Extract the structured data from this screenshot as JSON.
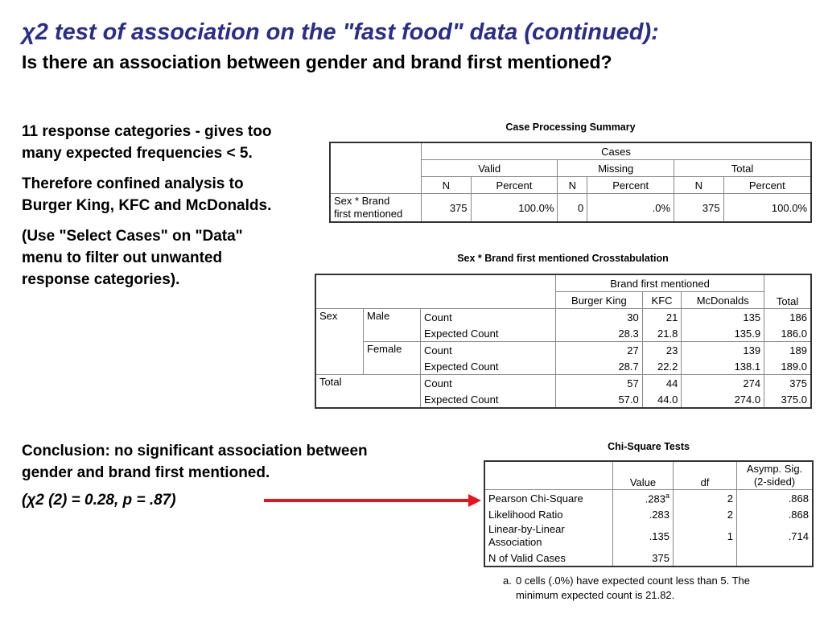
{
  "slide": {
    "title": "χ2 test of association on the \"fast food\" data (continued):",
    "subtitle": "Is there an association between gender and brand first mentioned?",
    "bullets": [
      "11 response categories - gives too many expected frequencies < 5.",
      "Therefore confined analysis to Burger King, KFC and McDonalds.",
      "(Use \"Select Cases\" on \"Data\" menu to filter out unwanted response categories)."
    ],
    "conclusion": "Conclusion: no significant association between gender and brand first mentioned.",
    "conclusion_stat": "(χ2 (2) = 0.28, p = .87)"
  },
  "case_summary": {
    "caption": "Case Processing Summary",
    "cases_header": "Cases",
    "groups": [
      "Valid",
      "Missing",
      "Total"
    ],
    "subheaders": [
      "N",
      "Percent",
      "N",
      "Percent",
      "N",
      "Percent"
    ],
    "row_label_1": "Sex * Brand",
    "row_label_2": "first mentioned",
    "values": [
      "375",
      "100.0%",
      "0",
      ".0%",
      "375",
      "100.0%"
    ]
  },
  "crosstab": {
    "caption": "Sex * Brand first mentioned Crosstabulation",
    "brand_header": "Brand first mentioned",
    "columns": [
      "Burger King",
      "KFC",
      "McDonalds"
    ],
    "total_header": "Total",
    "sex_label": "Sex",
    "male": "Male",
    "female": "Female",
    "total_label": "Total",
    "count_label": "Count",
    "expected_label": "Expected Count",
    "male_count": [
      "30",
      "21",
      "135",
      "186"
    ],
    "male_expected": [
      "28.3",
      "21.8",
      "135.9",
      "186.0"
    ],
    "female_count": [
      "27",
      "23",
      "139",
      "189"
    ],
    "female_expected": [
      "28.7",
      "22.2",
      "138.1",
      "189.0"
    ],
    "total_count": [
      "57",
      "44",
      "274",
      "375"
    ],
    "total_expected": [
      "57.0",
      "44.0",
      "274.0",
      "375.0"
    ]
  },
  "chisq": {
    "caption": "Chi-Square Tests",
    "col_value": "Value",
    "col_df": "df",
    "col_sig_1": "Asymp. Sig.",
    "col_sig_2": "(2-sided)",
    "rows": [
      {
        "label": "Pearson Chi-Square",
        "value": ".283",
        "sup": "a",
        "df": "2",
        "sig": ".868"
      },
      {
        "label": "Likelihood Ratio",
        "value": ".283",
        "df": "2",
        "sig": ".868"
      },
      {
        "label": "Linear-by-Linear",
        "label2": "Association",
        "value": ".135",
        "df": "1",
        "sig": ".714"
      },
      {
        "label": "N of Valid Cases",
        "value": "375"
      }
    ],
    "footnote_mark": "a.",
    "footnote": "0 cells (.0%) have expected count less than 5. The minimum expected count is 21.82."
  },
  "colors": {
    "title": "#2b2d8a",
    "arrow": "#e8141b"
  }
}
